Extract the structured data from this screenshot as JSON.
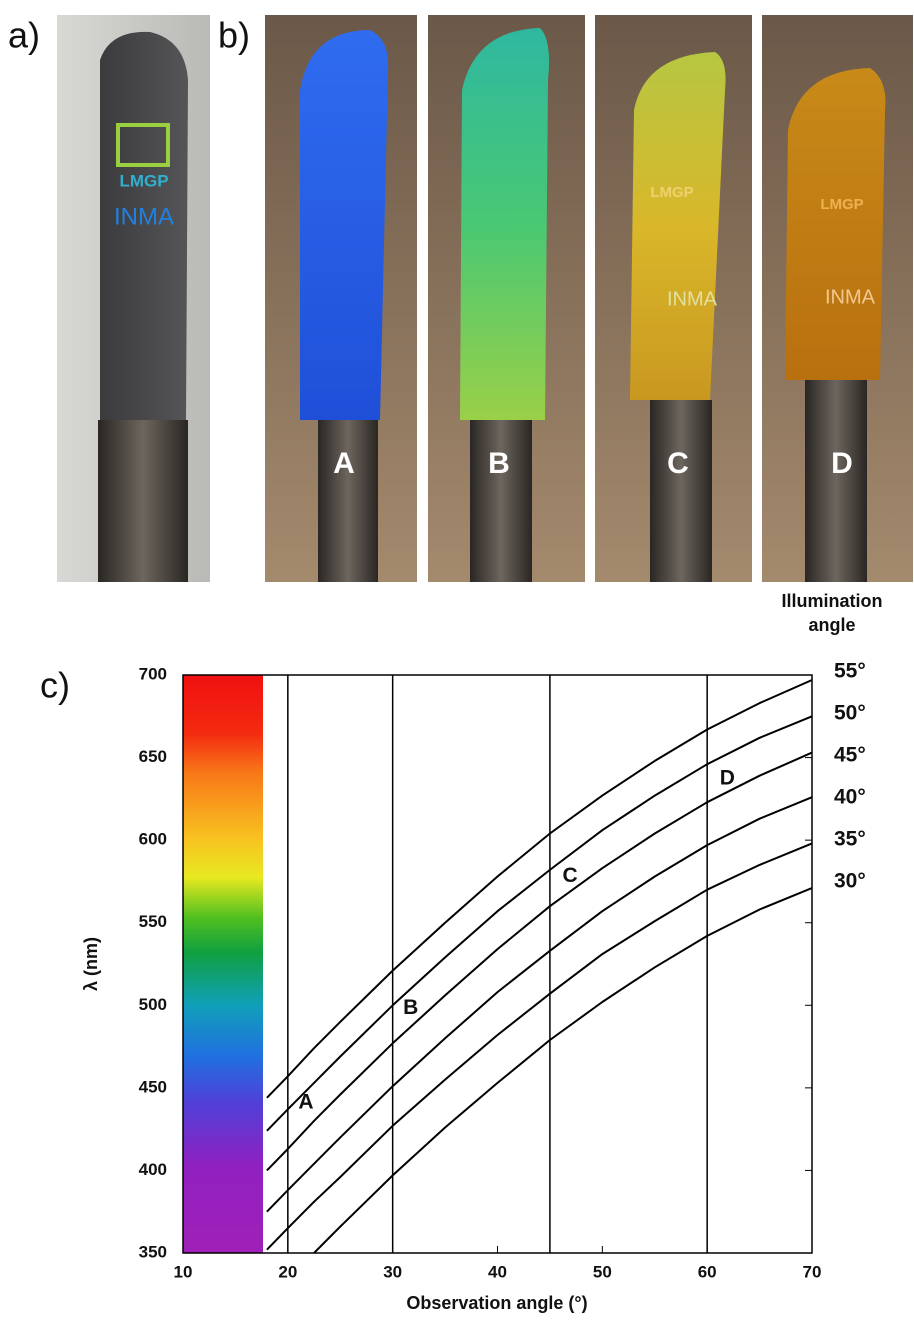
{
  "panels": {
    "a": "a)",
    "b": "b)",
    "c": "c)"
  },
  "photo_a": {
    "logo": "LMGP",
    "logo2": "INMA"
  },
  "photo_b": {
    "labels": [
      "A",
      "B",
      "C",
      "D"
    ],
    "logo": "LMGP",
    "logo2": "INMA"
  },
  "chart_data": {
    "type": "line",
    "xlabel": "Observation angle (°)",
    "ylabel": "λ (nm)",
    "legend_title": "Illumination angle",
    "x": [
      18,
      20,
      22.5,
      25,
      30,
      35,
      40,
      45,
      50,
      55,
      60,
      65,
      70
    ],
    "series": [
      {
        "name": "55°",
        "color": "#000000",
        "values": [
          444,
          457,
          474,
          490,
          521,
          550,
          578,
          604,
          627,
          648,
          667,
          683,
          697
        ]
      },
      {
        "name": "50°",
        "color": "#000000",
        "values": [
          424,
          437,
          453,
          469,
          500,
          529,
          557,
          582,
          606,
          627,
          646,
          662,
          675
        ]
      },
      {
        "name": "45°",
        "color": "#000000",
        "values": [
          400,
          413,
          430,
          446,
          477,
          506,
          534,
          560,
          583,
          604,
          623,
          639,
          653
        ]
      },
      {
        "name": "40°",
        "color": "#000000",
        "values": [
          375,
          388,
          404,
          420,
          451,
          480,
          508,
          533,
          557,
          578,
          597,
          613,
          626
        ]
      },
      {
        "name": "35°",
        "color": "#000000",
        "values": [
          352,
          365,
          381,
          396,
          427,
          455,
          482,
          507,
          531,
          551,
          570,
          585,
          598
        ]
      },
      {
        "name": "30°",
        "color": "#000000",
        "values": [
          null,
          null,
          350,
          366,
          397,
          426,
          453,
          479,
          502,
          523,
          542,
          558,
          571
        ]
      }
    ],
    "vlines": [
      20,
      30,
      45,
      60
    ],
    "annotations": [
      {
        "text": "A",
        "x": 21,
        "y": 441
      },
      {
        "text": "B",
        "x": 31,
        "y": 498
      },
      {
        "text": "C",
        "x": 46.2,
        "y": 578
      },
      {
        "text": "D",
        "x": 61.2,
        "y": 637
      }
    ],
    "xlim": [
      10,
      70
    ],
    "xticks": [
      10,
      20,
      30,
      40,
      50,
      60,
      70
    ],
    "ylim": [
      350,
      700
    ],
    "yticks": [
      350,
      400,
      450,
      500,
      550,
      600,
      650,
      700
    ]
  }
}
